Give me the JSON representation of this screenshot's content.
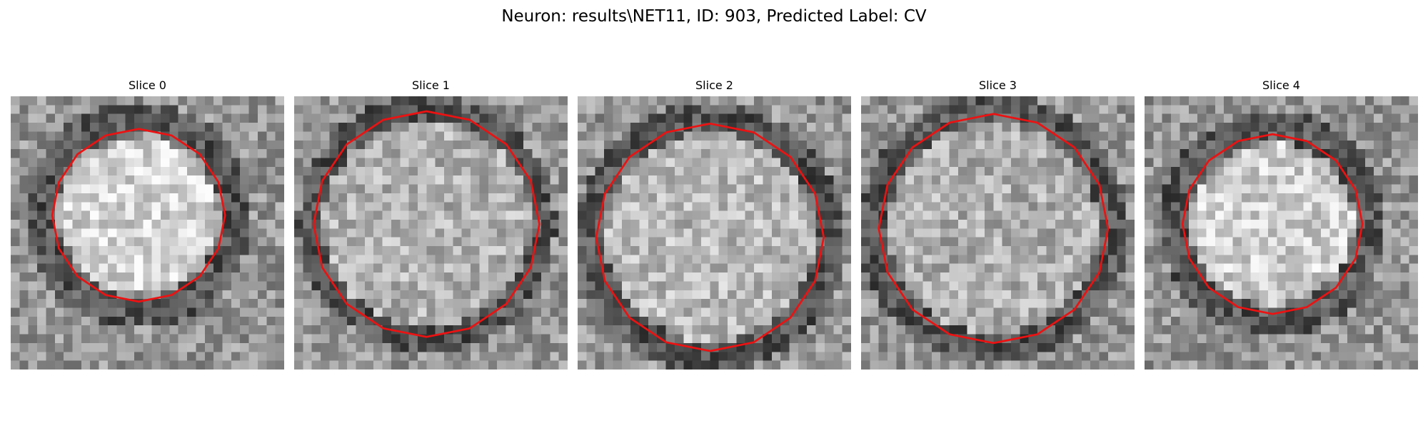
{
  "figure": {
    "title": "Neuron: results\\NET11, ID: 903, Predicted Label: CV"
  },
  "grid": {
    "rows": 31,
    "cols": 31
  },
  "contour_color": "#ee1111",
  "panels": [
    {
      "title": "Slice 0",
      "circle": {
        "cx": 14.5,
        "cy": 13.5,
        "r": 9.2
      },
      "ring": 11.2,
      "bright": 212
    },
    {
      "title": "Slice 1",
      "circle": {
        "cx": 15.0,
        "cy": 14.5,
        "r": 12.2
      },
      "ring": 12.8,
      "bright": 178
    },
    {
      "title": "Slice 2",
      "circle": {
        "cx": 15.0,
        "cy": 16.0,
        "r": 12.3
      },
      "ring": 13.6,
      "bright": 185
    },
    {
      "title": "Slice 3",
      "circle": {
        "cx": 15.0,
        "cy": 15.0,
        "r": 12.4
      },
      "ring": 13.5,
      "bright": 175
    },
    {
      "title": "Slice 4",
      "circle": {
        "cx": 14.5,
        "cy": 14.5,
        "r": 9.6
      },
      "ring": 11.2,
      "bright": 208
    }
  ]
}
